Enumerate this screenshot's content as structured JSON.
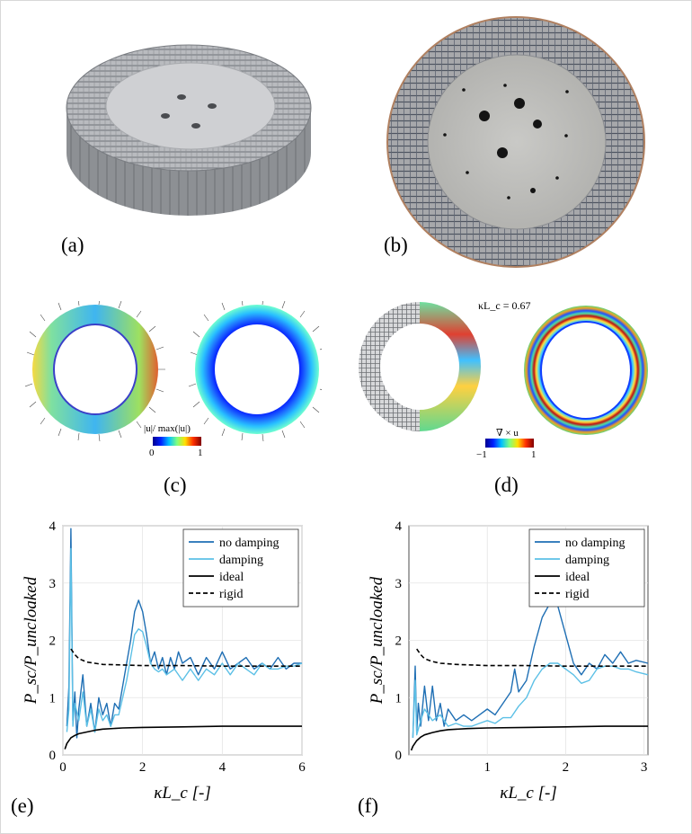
{
  "panel_labels": {
    "a": "(a)",
    "b": "(b)",
    "c": "(c)",
    "d": "(d)",
    "e": "(e)",
    "f": "(f)"
  },
  "colorbar_c": {
    "label": "|u|/ max(|u|)",
    "min": "0",
    "max": "1"
  },
  "colorbar_d": {
    "label": "∇ × u",
    "min": "−1",
    "max": "1"
  },
  "panel_d_annotation": "κL_c = 0.67",
  "colors": {
    "no_damping": "#1f6fb4",
    "damping": "#5cc0e6",
    "ideal": "#000000",
    "rigid": "#000000",
    "gray_model": "#9ea0a4"
  },
  "chart_data": [
    {
      "type": "line",
      "panel": "(e)",
      "ylabel": "P_sc/P_uncloaked",
      "xlabel": "κL_c [-]",
      "xlim": [
        0,
        6
      ],
      "ylim": [
        0,
        4
      ],
      "xticks": [
        "0",
        "2",
        "4",
        "6"
      ],
      "yticks": [
        "0",
        "1",
        "2",
        "3",
        "4"
      ],
      "grid": true,
      "legend_position": "top-right",
      "series": [
        {
          "name": "no damping",
          "style": "solid",
          "x": [
            0.1,
            0.15,
            0.2,
            0.25,
            0.3,
            0.35,
            0.4,
            0.5,
            0.6,
            0.7,
            0.8,
            0.9,
            1.0,
            1.1,
            1.2,
            1.3,
            1.4,
            1.5,
            1.6,
            1.7,
            1.8,
            1.9,
            2.0,
            2.1,
            2.2,
            2.3,
            2.4,
            2.5,
            2.6,
            2.7,
            2.8,
            2.9,
            3.0,
            3.2,
            3.4,
            3.6,
            3.8,
            4.0,
            4.2,
            4.4,
            4.6,
            4.8,
            5.0,
            5.2,
            5.4,
            5.6,
            5.8,
            6.0
          ],
          "y": [
            0.5,
            1.2,
            3.95,
            0.6,
            1.1,
            0.3,
            0.8,
            1.4,
            0.5,
            0.9,
            0.4,
            1.0,
            0.7,
            0.9,
            0.5,
            0.9,
            0.8,
            1.2,
            1.6,
            2.0,
            2.5,
            2.7,
            2.5,
            2.1,
            1.6,
            1.8,
            1.5,
            1.7,
            1.4,
            1.7,
            1.5,
            1.8,
            1.6,
            1.7,
            1.4,
            1.7,
            1.5,
            1.8,
            1.5,
            1.6,
            1.7,
            1.5,
            1.6,
            1.5,
            1.7,
            1.5,
            1.6,
            1.6
          ]
        },
        {
          "name": "damping",
          "style": "solid",
          "x": [
            0.1,
            0.15,
            0.2,
            0.25,
            0.3,
            0.4,
            0.5,
            0.6,
            0.7,
            0.8,
            0.9,
            1.0,
            1.1,
            1.2,
            1.3,
            1.4,
            1.5,
            1.6,
            1.7,
            1.8,
            1.9,
            2.0,
            2.1,
            2.2,
            2.3,
            2.4,
            2.5,
            2.6,
            2.8,
            3.0,
            3.2,
            3.4,
            3.6,
            3.8,
            4.0,
            4.2,
            4.4,
            4.6,
            4.8,
            5.0,
            5.2,
            5.4,
            5.6,
            5.8,
            6.0
          ],
          "y": [
            0.4,
            0.8,
            3.6,
            0.5,
            0.9,
            0.6,
            1.1,
            0.5,
            0.8,
            0.4,
            0.8,
            0.6,
            0.7,
            0.5,
            0.7,
            0.7,
            1.0,
            1.3,
            1.7,
            2.1,
            2.2,
            2.15,
            1.9,
            1.6,
            1.5,
            1.45,
            1.5,
            1.4,
            1.5,
            1.3,
            1.5,
            1.3,
            1.5,
            1.4,
            1.6,
            1.4,
            1.6,
            1.5,
            1.4,
            1.6,
            1.5,
            1.5,
            1.55,
            1.55,
            1.6
          ]
        },
        {
          "name": "ideal",
          "style": "solid",
          "x": [
            0.05,
            0.1,
            0.2,
            0.3,
            0.4,
            0.6,
            0.8,
            1.0,
            1.5,
            2.0,
            3.0,
            4.0,
            5.0,
            6.0
          ],
          "y": [
            0.1,
            0.2,
            0.3,
            0.34,
            0.37,
            0.4,
            0.43,
            0.45,
            0.47,
            0.48,
            0.49,
            0.5,
            0.5,
            0.5
          ]
        },
        {
          "name": "rigid",
          "style": "dashed",
          "x": [
            0.2,
            0.3,
            0.4,
            0.6,
            0.8,
            1.0,
            1.5,
            2.0,
            3.0,
            4.0,
            5.0,
            6.0
          ],
          "y": [
            1.85,
            1.75,
            1.68,
            1.62,
            1.6,
            1.58,
            1.57,
            1.56,
            1.56,
            1.55,
            1.55,
            1.55
          ]
        }
      ]
    },
    {
      "type": "line",
      "panel": "(f)",
      "ylabel": "P_sc/P_uncloaked",
      "xlabel": "κL_c [-]",
      "xlim": [
        0,
        3.05
      ],
      "ylim": [
        0,
        4
      ],
      "xticks": [
        "1",
        "2",
        "3"
      ],
      "yticks": [
        "0",
        "1",
        "2",
        "3",
        "4"
      ],
      "grid": true,
      "legend_position": "top-right",
      "series": [
        {
          "name": "no damping",
          "style": "solid",
          "x": [
            0.05,
            0.08,
            0.1,
            0.12,
            0.15,
            0.2,
            0.25,
            0.3,
            0.35,
            0.4,
            0.45,
            0.5,
            0.6,
            0.7,
            0.8,
            0.9,
            1.0,
            1.1,
            1.2,
            1.3,
            1.35,
            1.4,
            1.5,
            1.6,
            1.7,
            1.8,
            1.85,
            1.9,
            2.0,
            2.1,
            2.2,
            2.3,
            2.4,
            2.5,
            2.6,
            2.7,
            2.8,
            2.9,
            3.05
          ],
          "y": [
            0.3,
            1.55,
            0.4,
            0.9,
            0.5,
            1.2,
            0.6,
            1.2,
            0.6,
            0.9,
            0.5,
            0.8,
            0.6,
            0.7,
            0.6,
            0.7,
            0.8,
            0.7,
            0.9,
            1.1,
            1.5,
            1.1,
            1.3,
            1.9,
            2.4,
            2.65,
            2.7,
            2.6,
            2.1,
            1.6,
            1.4,
            1.6,
            1.5,
            1.75,
            1.6,
            1.8,
            1.6,
            1.65,
            1.6
          ]
        },
        {
          "name": "damping",
          "style": "solid",
          "x": [
            0.05,
            0.08,
            0.1,
            0.15,
            0.2,
            0.3,
            0.4,
            0.5,
            0.6,
            0.7,
            0.8,
            0.9,
            1.0,
            1.1,
            1.2,
            1.3,
            1.4,
            1.5,
            1.6,
            1.7,
            1.8,
            1.9,
            2.0,
            2.1,
            2.2,
            2.3,
            2.4,
            2.5,
            2.6,
            2.7,
            2.8,
            2.9,
            3.05
          ],
          "y": [
            0.3,
            1.3,
            0.35,
            0.6,
            0.8,
            0.6,
            0.7,
            0.5,
            0.55,
            0.5,
            0.5,
            0.55,
            0.6,
            0.55,
            0.65,
            0.65,
            0.85,
            1.0,
            1.3,
            1.5,
            1.6,
            1.6,
            1.5,
            1.4,
            1.25,
            1.3,
            1.5,
            1.55,
            1.55,
            1.5,
            1.5,
            1.45,
            1.4
          ]
        },
        {
          "name": "ideal",
          "style": "solid",
          "x": [
            0.03,
            0.05,
            0.1,
            0.15,
            0.2,
            0.3,
            0.4,
            0.5,
            0.75,
            1.0,
            1.5,
            2.0,
            2.5,
            3.05
          ],
          "y": [
            0.08,
            0.15,
            0.25,
            0.31,
            0.35,
            0.39,
            0.42,
            0.44,
            0.46,
            0.47,
            0.48,
            0.49,
            0.5,
            0.5
          ]
        },
        {
          "name": "rigid",
          "style": "dashed",
          "x": [
            0.1,
            0.15,
            0.2,
            0.3,
            0.4,
            0.6,
            0.8,
            1.0,
            1.5,
            2.0,
            2.5,
            3.05
          ],
          "y": [
            1.85,
            1.75,
            1.68,
            1.63,
            1.6,
            1.58,
            1.57,
            1.56,
            1.56,
            1.55,
            1.55,
            1.55
          ]
        }
      ]
    }
  ]
}
